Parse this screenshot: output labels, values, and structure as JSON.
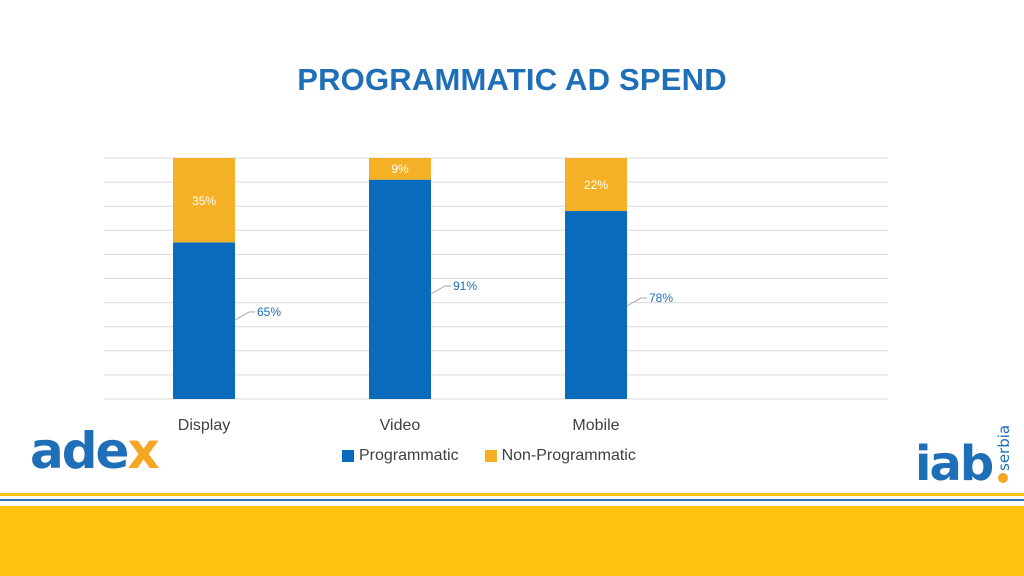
{
  "colors": {
    "programmatic": "#0a6bbd",
    "non_programmatic": "#f5b125",
    "title": "#1f6fb8",
    "grid": "#d9d9d9",
    "footer_yellow": "#ffc20e",
    "footer_blue": "#2a72b8"
  },
  "chart_data": {
    "type": "bar",
    "stacked": true,
    "title": "PROGRAMMATIC AD SPEND",
    "categories": [
      "Display",
      "Video",
      "Mobile"
    ],
    "series": [
      {
        "name": "Programmatic",
        "values": [
          65,
          91,
          78
        ],
        "labels": [
          "65%",
          "91%",
          "78%"
        ]
      },
      {
        "name": "Non-Programmatic",
        "values": [
          35,
          9,
          22
        ],
        "labels": [
          "35%",
          "9%",
          "22%"
        ]
      }
    ],
    "ylim": [
      0,
      100
    ],
    "grid": true,
    "legend": "bottom"
  },
  "logos": {
    "adex": {
      "text_a": "ade",
      "text_b": "x"
    },
    "iab": {
      "text": "iab",
      "sub": "serbia"
    }
  }
}
